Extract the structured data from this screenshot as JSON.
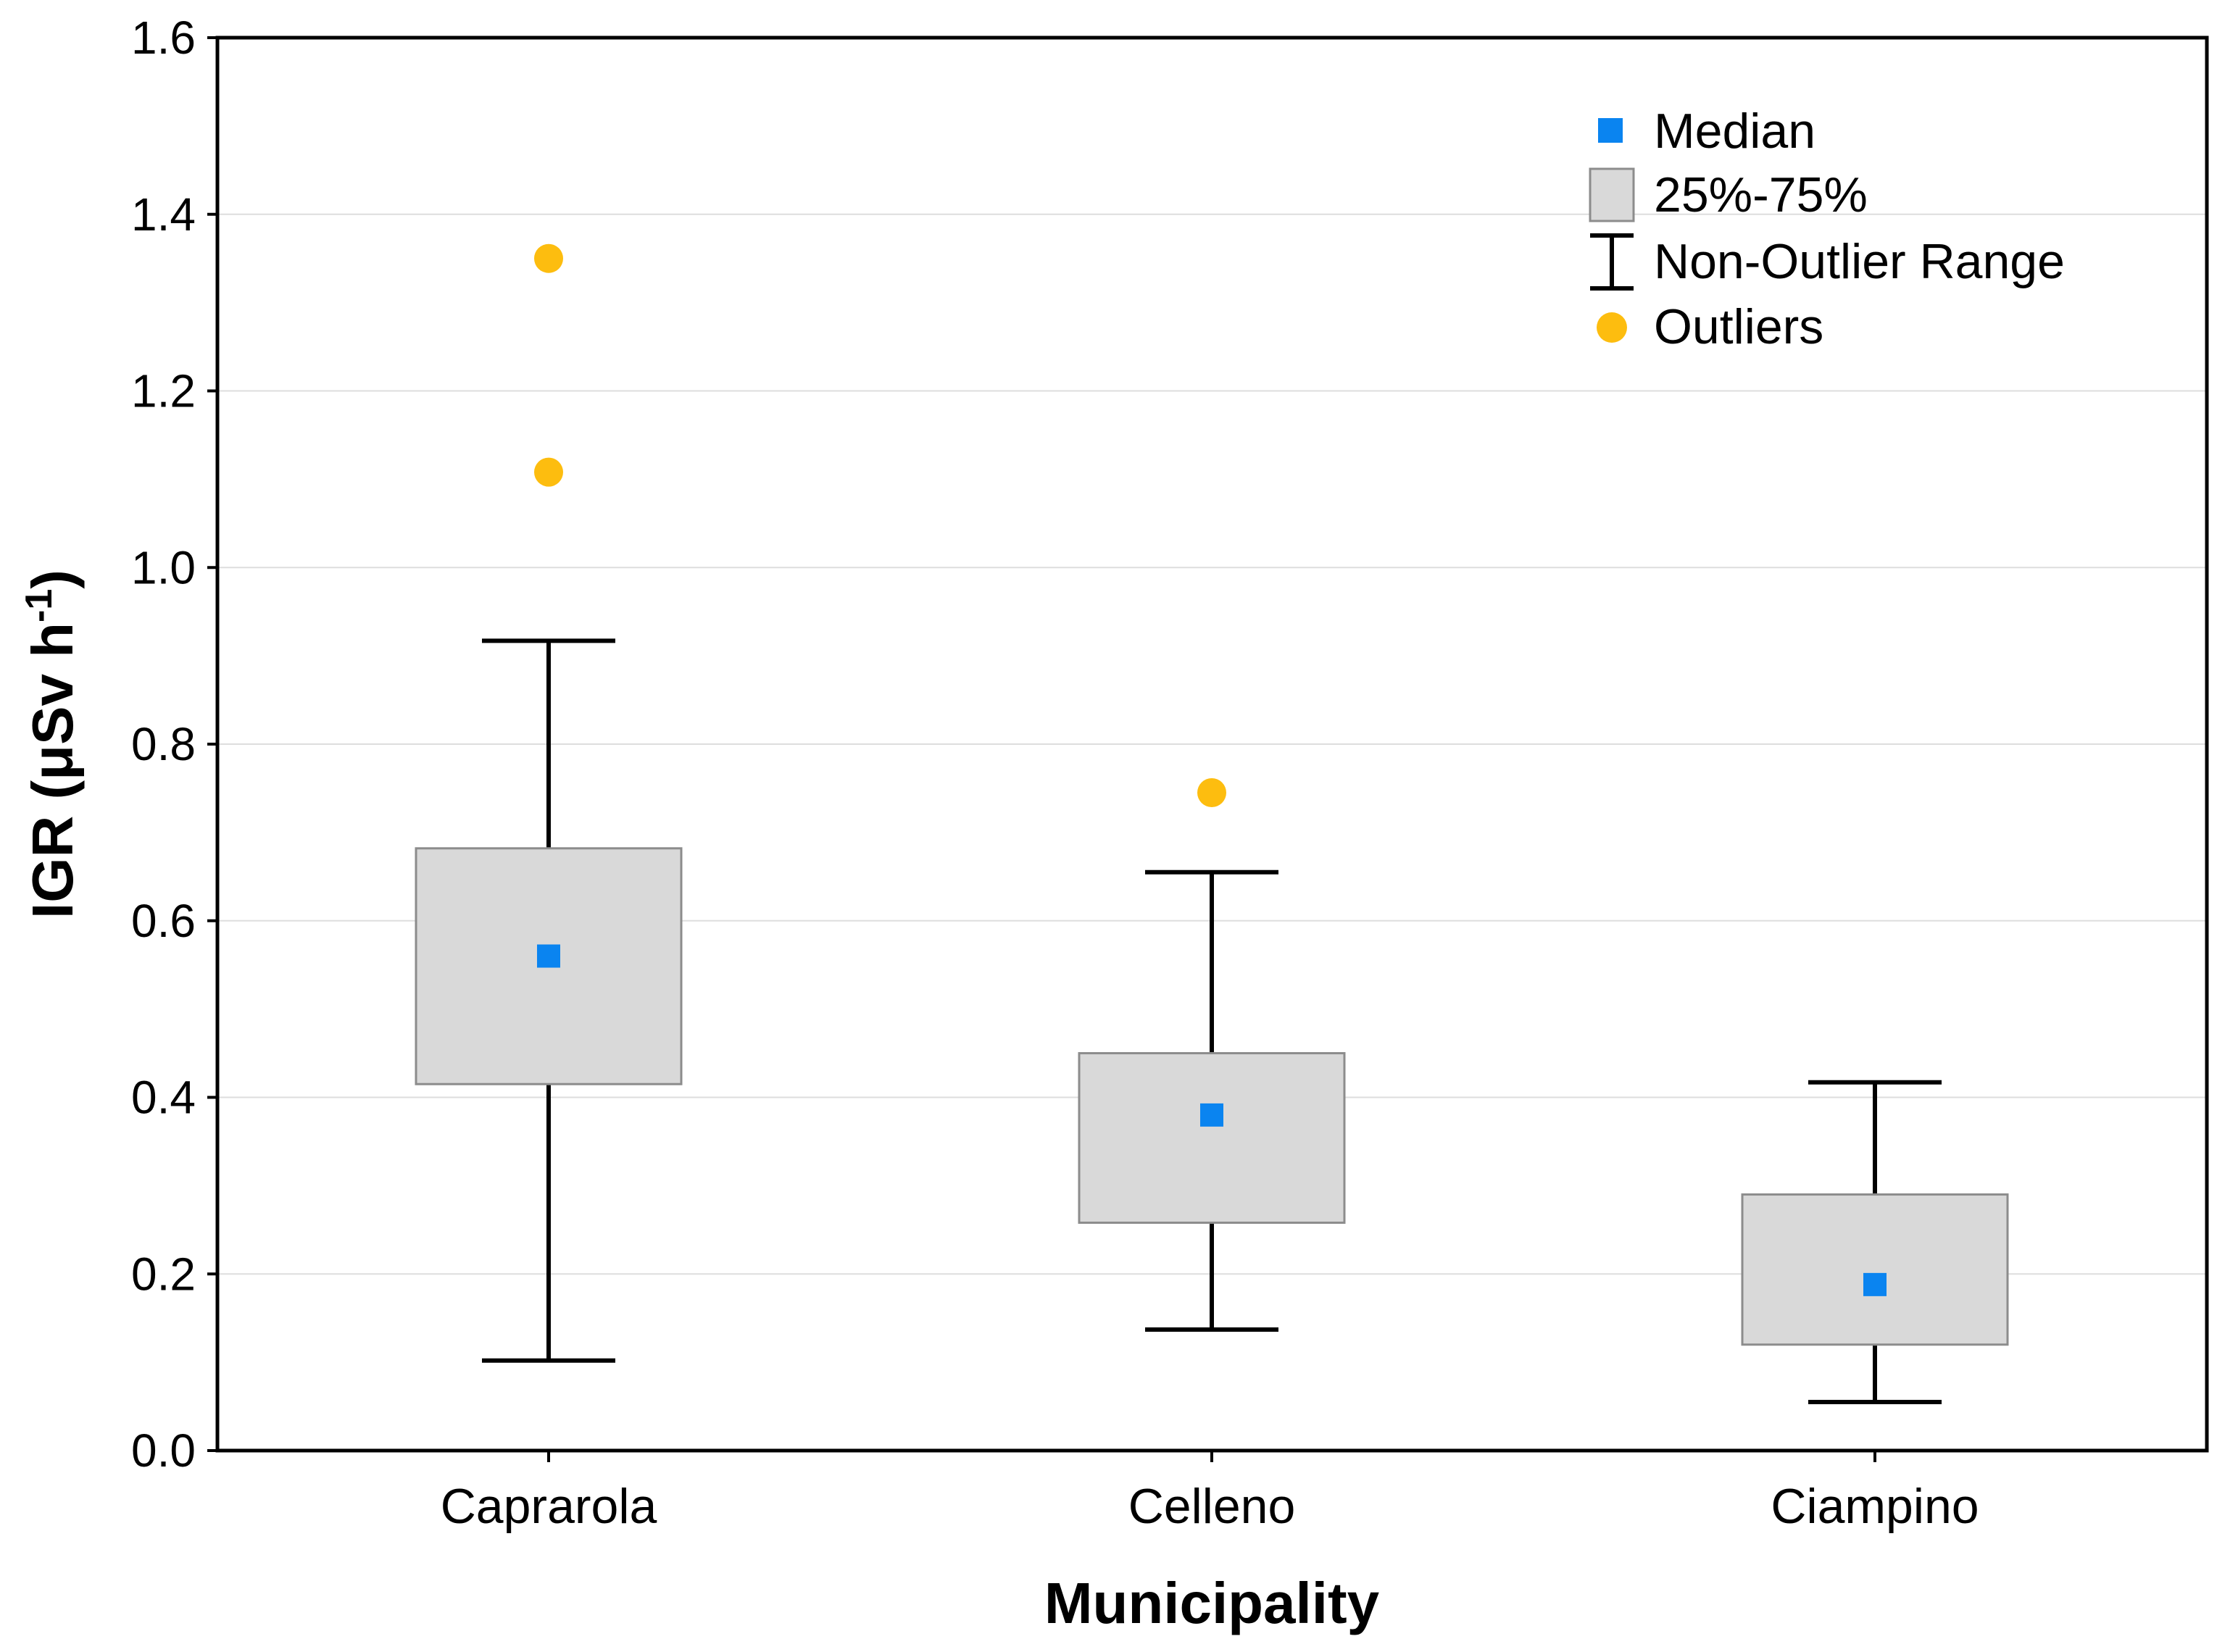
{
  "chart_data": {
    "type": "box",
    "categories": [
      "Caprarola",
      "Celleno",
      "Ciampino"
    ],
    "boxes": [
      {
        "category": "Caprarola",
        "median": 0.56,
        "q1": 0.415,
        "q3": 0.682,
        "whisker_low": 0.102,
        "whisker_high": 0.917,
        "outliers": [
          1.35,
          1.108
        ]
      },
      {
        "category": "Celleno",
        "median": 0.38,
        "q1": 0.258,
        "q3": 0.45,
        "whisker_low": 0.137,
        "whisker_high": 0.655,
        "outliers": [
          0.745
        ]
      },
      {
        "category": "Ciampino",
        "median": 0.188,
        "q1": 0.12,
        "q3": 0.29,
        "whisker_low": 0.055,
        "whisker_high": 0.417,
        "outliers": []
      }
    ],
    "xlabel": "Municipality",
    "ylabel_main": "IGR (μSv h",
    "ylabel_sup": "-1",
    "ylabel_end": ")",
    "ylim": [
      0.0,
      1.6
    ],
    "yticks": [
      0.0,
      0.2,
      0.4,
      0.6,
      0.8,
      1.0,
      1.2,
      1.4,
      1.6
    ],
    "ytick_labels": [
      "0.0",
      "0.2",
      "0.4",
      "0.6",
      "0.8",
      "1.0",
      "1.2",
      "1.4",
      "1.6"
    ],
    "grid": true,
    "legend": {
      "position": "top-right",
      "entries": [
        {
          "label": "Median",
          "marker": "square"
        },
        {
          "label": "25%-75%",
          "marker": "box"
        },
        {
          "label": "Non-Outlier Range",
          "marker": "whisker"
        },
        {
          "label": "Outliers",
          "marker": "circle"
        }
      ]
    },
    "colors": {
      "median": "#0a84f0",
      "box_fill": "#d9d9d9",
      "box_stroke": "#8c8c8c",
      "whisker": "#000000",
      "outlier": "#fdbd0f",
      "grid": "#dedede",
      "axis": "#000000"
    }
  }
}
